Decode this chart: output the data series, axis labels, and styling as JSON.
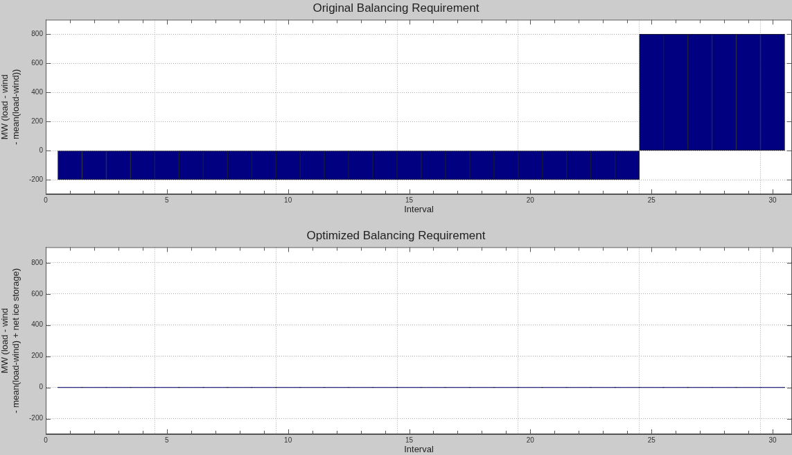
{
  "chart_data": [
    {
      "type": "bar",
      "title": "Original Balancing Requirement",
      "xlabel": "Interval",
      "ylabel": "MW (load - wind\n- mean(load-wind))",
      "x": [
        1,
        2,
        3,
        4,
        5,
        6,
        7,
        8,
        9,
        10,
        11,
        12,
        13,
        14,
        15,
        16,
        17,
        18,
        19,
        20,
        21,
        22,
        23,
        24,
        25,
        26,
        27,
        28,
        29,
        30
      ],
      "series": [
        {
          "color": "#000080",
          "values": [
            -200,
            -200,
            -200,
            -200,
            -200,
            -200,
            -200,
            -200,
            -200,
            -200,
            -200,
            -200,
            -200,
            -200,
            -200,
            -200,
            -200,
            -200,
            -200,
            -200,
            -200,
            -200,
            -200,
            -200,
            800,
            800,
            800,
            800,
            800,
            800
          ]
        }
      ],
      "xlim": [
        0,
        30.8
      ],
      "xticks": [
        0,
        {
          "value": 1,
          "label": null
        },
        {
          "value": 2,
          "label": null
        },
        {
          "value": 3,
          "label": null
        },
        {
          "value": 4,
          "label": null
        },
        5,
        {
          "value": 6,
          "label": null
        },
        {
          "value": 7,
          "label": null
        },
        {
          "value": 8,
          "label": null
        },
        {
          "value": 9,
          "label": null
        },
        10,
        {
          "value": 11,
          "label": null
        },
        {
          "value": 12,
          "label": null
        },
        {
          "value": 13,
          "label": null
        },
        {
          "value": 14,
          "label": null
        },
        15,
        {
          "value": 16,
          "label": null
        },
        {
          "value": 17,
          "label": null
        },
        {
          "value": 18,
          "label": null
        },
        {
          "value": 19,
          "label": null
        },
        20,
        {
          "value": 21,
          "label": null
        },
        {
          "value": 22,
          "label": null
        },
        {
          "value": 23,
          "label": null
        },
        {
          "value": 24,
          "label": null
        },
        25,
        {
          "value": 26,
          "label": null
        },
        {
          "value": 27,
          "label": null
        },
        {
          "value": 28,
          "label": null
        },
        {
          "value": 29,
          "label": null
        },
        30
      ],
      "ylim": [
        -300,
        900
      ],
      "yticks": [
        -200,
        0,
        200,
        400,
        600,
        800
      ],
      "grid": true,
      "legend": false
    },
    {
      "type": "bar",
      "title": "Optimized Balancing Requirement",
      "xlabel": "Interval",
      "ylabel": "MW (load - wind\n- mean(load-wind) + net ice storage)",
      "x": [
        1,
        2,
        3,
        4,
        5,
        6,
        7,
        8,
        9,
        10,
        11,
        12,
        13,
        14,
        15,
        16,
        17,
        18,
        19,
        20,
        21,
        22,
        23,
        24,
        25,
        26,
        27,
        28,
        29,
        30
      ],
      "series": [
        {
          "color": "#000080",
          "values": [
            0,
            0,
            0,
            0,
            0,
            0,
            0,
            0,
            0,
            0,
            0,
            0,
            0,
            0,
            0,
            0,
            0,
            0,
            0,
            0,
            0,
            0,
            0,
            0,
            0,
            0,
            0,
            0,
            0,
            0
          ]
        }
      ],
      "xlim": [
        0,
        30.8
      ],
      "xticks": [
        0,
        {
          "value": 1,
          "label": null
        },
        {
          "value": 2,
          "label": null
        },
        {
          "value": 3,
          "label": null
        },
        {
          "value": 4,
          "label": null
        },
        5,
        {
          "value": 6,
          "label": null
        },
        {
          "value": 7,
          "label": null
        },
        {
          "value": 8,
          "label": null
        },
        {
          "value": 9,
          "label": null
        },
        10,
        {
          "value": 11,
          "label": null
        },
        {
          "value": 12,
          "label": null
        },
        {
          "value": 13,
          "label": null
        },
        {
          "value": 14,
          "label": null
        },
        15,
        {
          "value": 16,
          "label": null
        },
        {
          "value": 17,
          "label": null
        },
        {
          "value": 18,
          "label": null
        },
        {
          "value": 19,
          "label": null
        },
        20,
        {
          "value": 21,
          "label": null
        },
        {
          "value": 22,
          "label": null
        },
        {
          "value": 23,
          "label": null
        },
        {
          "value": 24,
          "label": null
        },
        25,
        {
          "value": 26,
          "label": null
        },
        {
          "value": 27,
          "label": null
        },
        {
          "value": 28,
          "label": null
        },
        {
          "value": 29,
          "label": null
        },
        30
      ],
      "ylim": [
        -300,
        900
      ],
      "yticks": [
        -200,
        0,
        200,
        400,
        600,
        800
      ],
      "grid": true,
      "legend": false
    }
  ]
}
